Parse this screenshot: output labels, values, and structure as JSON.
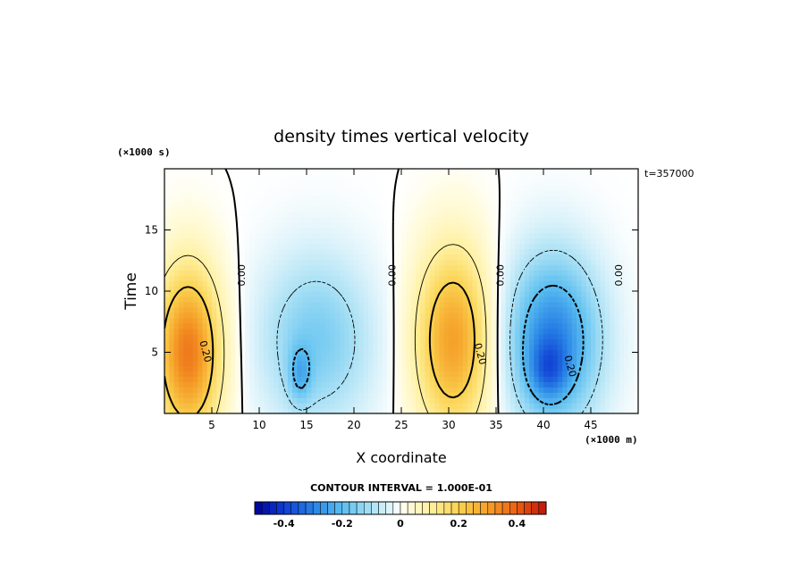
{
  "chart_data": {
    "type": "heatmap",
    "title": "density times vertical velocity",
    "xlabel": "X coordinate",
    "ylabel": "Time",
    "x_unit": "(×1000 m)",
    "y_unit": "(×1000 s)",
    "annotation": "t=357000",
    "xlim": [
      0,
      50
    ],
    "ylim": [
      0,
      20
    ],
    "x_ticks": [
      5,
      10,
      15,
      20,
      25,
      30,
      35,
      40,
      45
    ],
    "y_ticks": [
      5,
      10,
      15
    ],
    "contour_interval_text": "CONTOUR INTERVAL = 1.000E-01",
    "zero_contour_label": "0.00",
    "contour_label": "0.20",
    "contour_labels": [
      {
        "text": "0.00",
        "x": 8.5,
        "y": 11.3
      },
      {
        "text": "0.00",
        "x": 24.4,
        "y": 11.3
      },
      {
        "text": "0.00",
        "x": 35.8,
        "y": 11.3
      },
      {
        "text": "0.00",
        "x": 48.3,
        "y": 11.3
      },
      {
        "text": "0.20",
        "x": 4.0,
        "y": 5.0
      },
      {
        "text": "0.20",
        "x": 33.0,
        "y": 4.8
      },
      {
        "text": "0.20",
        "x": 42.5,
        "y": 3.8
      }
    ],
    "colorbar": {
      "min": -0.5,
      "max": 0.5,
      "tick_values": [
        -0.4,
        -0.2,
        0,
        0.2,
        0.4
      ],
      "tick_labels": [
        "-0.4",
        "-0.2",
        "0",
        "0.2",
        "0.4"
      ]
    },
    "cells": [
      {
        "x": 2.5,
        "y": 5.0,
        "sx": 3.5,
        "sy": 7.0,
        "amp": 0.36
      },
      {
        "x": 16.0,
        "y": 6.0,
        "sx": 6.0,
        "sy": 7.0,
        "amp": -0.16
      },
      {
        "x": 14.3,
        "y": 3.2,
        "sx": 1.2,
        "sy": 2.3,
        "amp": -0.12
      },
      {
        "x": 30.5,
        "y": 6.0,
        "sx": 4.0,
        "sy": 7.5,
        "amp": 0.3
      },
      {
        "x": 41.0,
        "y": 6.0,
        "sx": 5.0,
        "sy": 7.0,
        "amp": -0.3
      },
      {
        "x": 40.5,
        "y": 3.5,
        "sx": 2.0,
        "sy": 2.4,
        "amp": -0.12
      }
    ]
  }
}
